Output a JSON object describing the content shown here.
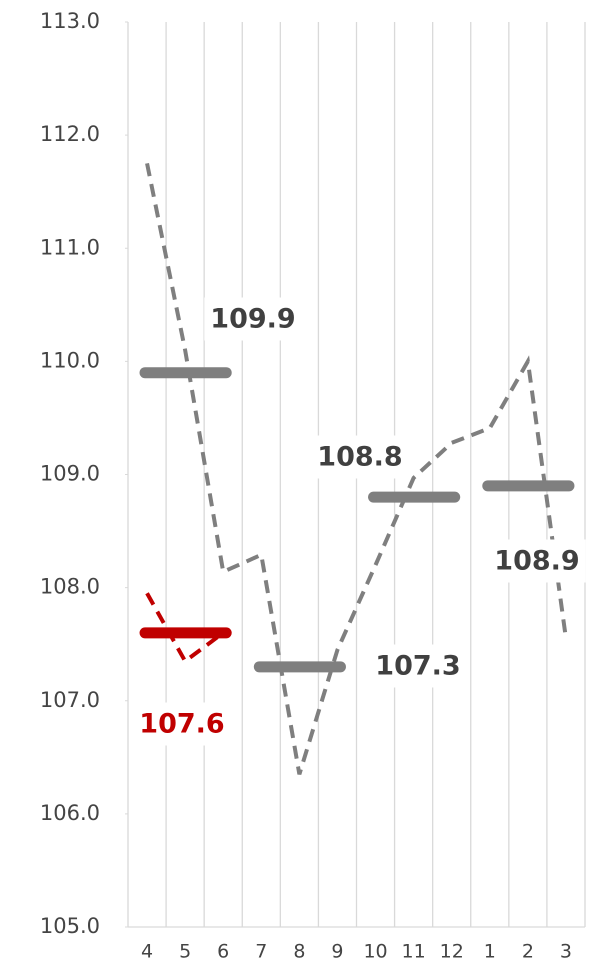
{
  "chart_data": {
    "type": "line",
    "categories": [
      "4",
      "5",
      "6",
      "7",
      "8",
      "9",
      "10",
      "11",
      "12",
      "1",
      "2",
      "3"
    ],
    "series": [
      {
        "color": "#7f7f7f",
        "style": "dashed",
        "values": [
          111.75,
          110.1,
          108.14,
          108.29,
          106.35,
          107.45,
          108.2,
          108.97,
          109.28,
          109.41,
          110.0,
          107.55
        ]
      },
      {
        "color": "#c00000",
        "style": "dashed",
        "values": [
          107.95,
          107.35,
          107.6,
          null,
          null,
          null,
          null,
          null,
          null,
          null,
          null,
          null
        ]
      },
      {
        "color": "#7f7f7f",
        "style": "bar",
        "values": [
          109.9,
          null,
          null,
          107.3,
          null,
          null,
          108.8,
          null,
          null,
          108.9,
          null,
          null
        ]
      },
      {
        "color": "#c00000",
        "style": "bar",
        "values": [
          107.6,
          null,
          null,
          null,
          null,
          null,
          null,
          null,
          null,
          null,
          null,
          null
        ]
      }
    ],
    "ylim": [
      105,
      113
    ],
    "yticks": [
      {
        "value": 105,
        "label": "105.0"
      },
      {
        "value": 106,
        "label": "106.0"
      },
      {
        "value": 107,
        "label": "107.0"
      },
      {
        "value": 108,
        "label": "108.0"
      },
      {
        "value": 109,
        "label": "109.0"
      },
      {
        "value": 110,
        "label": "110.0"
      },
      {
        "value": 111,
        "label": "111.0"
      },
      {
        "value": 112,
        "label": "112.0"
      },
      {
        "value": 113,
        "label": "113.0"
      }
    ],
    "grid": "x"
  }
}
